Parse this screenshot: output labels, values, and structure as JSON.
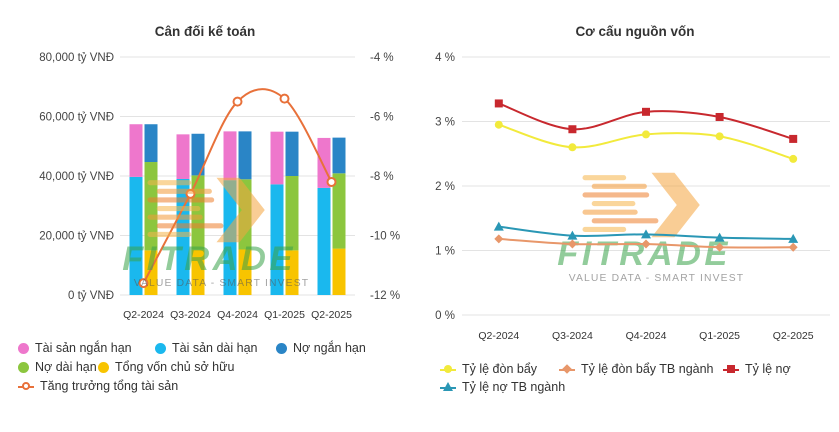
{
  "chart_data": [
    {
      "type": "bar",
      "title": "Cân đối kế toán",
      "categories": [
        "Q2-2024",
        "Q3-2024",
        "Q4-2024",
        "Q1-2025",
        "Q2-2025"
      ],
      "y_left": {
        "ylim": [
          0,
          80000
        ],
        "ticks": [
          "0 tỷ VNĐ",
          "20,000 tỷ VNĐ",
          "40,000 tỷ VNĐ",
          "60,000 tỷ VNĐ",
          "80,000 tỷ VNĐ"
        ]
      },
      "y_right": {
        "ylim": [
          -12,
          -4
        ],
        "ticks": [
          "-12 %",
          "-10 %",
          "-8 %",
          "-6 %",
          "-4 %"
        ]
      },
      "stack_assets": [
        {
          "name": "Tài sản dài hạn",
          "color": "#1ab8ee",
          "values": [
            39700,
            39000,
            38600,
            37200,
            36000
          ]
        },
        {
          "name": "Tài sản ngắn hạn",
          "color": "#ee77cc",
          "values": [
            17700,
            15000,
            16400,
            17700,
            16800
          ]
        }
      ],
      "stack_capital": [
        {
          "name": "Tổng vốn chủ sở hữu",
          "color": "#f8c400",
          "values": [
            15000,
            15200,
            15300,
            15000,
            15600
          ]
        },
        {
          "name": "Nợ dài hạn",
          "color": "#8cc63e",
          "values": [
            29700,
            25000,
            23600,
            25000,
            25300
          ]
        },
        {
          "name": "Nợ ngắn hạn",
          "color": "#2a85c6",
          "values": [
            12700,
            14000,
            16100,
            14900,
            12000
          ]
        }
      ],
      "line": {
        "name": "Tăng trưởng tổng tài sản",
        "color": "#e8713a",
        "values": [
          -11.6,
          -8.6,
          -5.5,
          -5.4,
          -8.2
        ]
      },
      "legend": [
        {
          "name": "Tài sản ngắn hạn",
          "color": "#ee77cc",
          "marker": "dot"
        },
        {
          "name": "Tài sản dài hạn",
          "color": "#1ab8ee",
          "marker": "dot"
        },
        {
          "name": "Nợ ngắn hạn",
          "color": "#2a85c6",
          "marker": "dot"
        },
        {
          "name": "Nợ dài hạn",
          "color": "#8cc63e",
          "marker": "dot"
        },
        {
          "name": "Tổng vốn chủ sở hữu",
          "color": "#f8c400",
          "marker": "dot"
        },
        {
          "name": "Tăng trưởng tổng tài sản",
          "color": "#e8713a",
          "marker": "ring-line"
        }
      ],
      "grid": true,
      "legend_placement": "bottom"
    },
    {
      "type": "line",
      "title": "Cơ cấu nguồn vốn",
      "categories": [
        "Q2-2024",
        "Q3-2024",
        "Q4-2024",
        "Q1-2025",
        "Q2-2025"
      ],
      "y": {
        "ylim": [
          0,
          4
        ],
        "ticks": [
          "0 %",
          "1 %",
          "2 %",
          "3 %",
          "4 %"
        ]
      },
      "series": [
        {
          "name": "Tỷ lệ đòn bẩy",
          "color": "#f2ea3c",
          "marker": "circle",
          "values": [
            2.95,
            2.6,
            2.8,
            2.77,
            2.42
          ]
        },
        {
          "name": "Tỷ lệ đòn bẩy TB ngành",
          "color": "#e8976a",
          "marker": "diamond",
          "values": [
            1.18,
            1.1,
            1.1,
            1.05,
            1.05
          ]
        },
        {
          "name": "Tỷ lệ nợ",
          "color": "#c8282e",
          "marker": "square",
          "values": [
            3.28,
            2.88,
            3.15,
            3.07,
            2.73
          ]
        },
        {
          "name": "Tỷ lệ nợ TB ngành",
          "color": "#2a97b5",
          "marker": "triangle",
          "values": [
            1.37,
            1.23,
            1.25,
            1.2,
            1.18
          ]
        }
      ],
      "grid": true,
      "legend_placement": "bottom"
    }
  ],
  "watermark": {
    "brand": "FITRADE",
    "tagline": "VALUE DATA - SMART INVEST"
  }
}
